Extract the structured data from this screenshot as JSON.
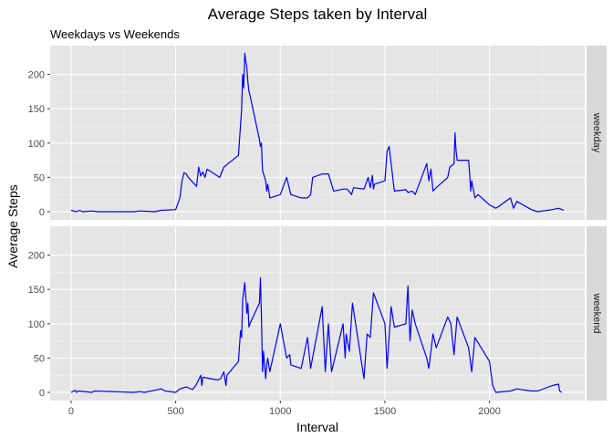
{
  "chart_data": {
    "type": "line",
    "title": "Average Steps taken by Interval",
    "subtitle": "Weekdays vs Weekends",
    "xlabel": "Interval",
    "ylabel": "Average Steps",
    "xlim": [
      -100,
      2455
    ],
    "ylim": [
      -12,
      242
    ],
    "x_ticks": [
      0,
      500,
      1000,
      1500,
      2000
    ],
    "y_ticks": [
      0,
      50,
      100,
      150,
      200
    ],
    "grid": true,
    "line_color": "#0000ff",
    "panel_bg": "#e5e5e5",
    "strip_bg": "#d9d9d9",
    "series": [
      {
        "name": "weekday",
        "x": [
          0,
          25,
          40,
          55,
          100,
          130,
          200,
          300,
          330,
          400,
          430,
          500,
          520,
          530,
          540,
          550,
          560,
          600,
          610,
          620,
          630,
          640,
          650,
          700,
          710,
          730,
          750,
          800,
          815,
          820,
          825,
          830,
          835,
          840,
          845,
          850,
          855,
          900,
          905,
          910,
          915,
          930,
          935,
          940,
          950,
          1000,
          1030,
          1050,
          1100,
          1130,
          1145,
          1155,
          1200,
          1210,
          1220,
          1230,
          1245,
          1255,
          1300,
          1320,
          1340,
          1350,
          1400,
          1420,
          1430,
          1440,
          1445,
          1450,
          1500,
          1510,
          1520,
          1530,
          1545,
          1600,
          1610,
          1630,
          1645,
          1700,
          1710,
          1720,
          1730,
          1745,
          1800,
          1810,
          1830,
          1835,
          1840,
          1845,
          1900,
          1905,
          1910,
          1915,
          1930,
          1945,
          2000,
          2030,
          2045,
          2100,
          2115,
          2130,
          2200,
          2230,
          2300,
          2330,
          2355
        ],
        "values": [
          2,
          0,
          2,
          0,
          1,
          0,
          0,
          0,
          1,
          0,
          2,
          3,
          20,
          45,
          57,
          55,
          50,
          37,
          65,
          52,
          58,
          50,
          62,
          52,
          50,
          65,
          70,
          82,
          150,
          200,
          180,
          231,
          220,
          210,
          190,
          175,
          170,
          105,
          95,
          100,
          60,
          45,
          30,
          40,
          20,
          25,
          50,
          25,
          20,
          20,
          25,
          50,
          55,
          55,
          55,
          55,
          40,
          30,
          33,
          33,
          25,
          35,
          33,
          50,
          35,
          53,
          33,
          40,
          45,
          88,
          95,
          70,
          30,
          32,
          28,
          30,
          25,
          70,
          45,
          62,
          30,
          35,
          50,
          65,
          70,
          115,
          90,
          75,
          75,
          55,
          30,
          45,
          20,
          25,
          10,
          5,
          8,
          20,
          5,
          15,
          3,
          0,
          3,
          5,
          2
        ]
      },
      {
        "name": "weekend",
        "x": [
          0,
          20,
          25,
          35,
          100,
          110,
          300,
          330,
          350,
          400,
          430,
          450,
          500,
          520,
          550,
          580,
          600,
          620,
          625,
          630,
          700,
          715,
          730,
          740,
          745,
          800,
          810,
          815,
          820,
          830,
          835,
          840,
          845,
          850,
          855,
          900,
          905,
          910,
          915,
          920,
          930,
          935,
          940,
          950,
          1000,
          1030,
          1045,
          1050,
          1100,
          1130,
          1145,
          1200,
          1215,
          1230,
          1245,
          1300,
          1310,
          1315,
          1330,
          1345,
          1400,
          1415,
          1430,
          1445,
          1500,
          1510,
          1530,
          1545,
          1600,
          1610,
          1620,
          1630,
          1645,
          1700,
          1710,
          1730,
          1745,
          1800,
          1815,
          1830,
          1845,
          1900,
          1915,
          1930,
          2000,
          2015,
          2030,
          2100,
          2130,
          2200,
          2230,
          2300,
          2330,
          2335,
          2345
        ],
        "values": [
          0,
          3,
          0,
          2,
          0,
          2,
          0,
          1,
          0,
          3,
          5,
          2,
          0,
          5,
          8,
          4,
          12,
          25,
          10,
          22,
          18,
          20,
          30,
          10,
          25,
          45,
          90,
          80,
          135,
          160,
          140,
          115,
          130,
          95,
          100,
          130,
          167,
          110,
          30,
          60,
          20,
          40,
          50,
          30,
          100,
          50,
          55,
          40,
          35,
          80,
          35,
          125,
          30,
          100,
          30,
          100,
          50,
          85,
          60,
          130,
          20,
          85,
          80,
          145,
          100,
          35,
          125,
          95,
          100,
          155,
          75,
          120,
          100,
          50,
          35,
          85,
          65,
          110,
          100,
          55,
          110,
          65,
          30,
          80,
          45,
          10,
          0,
          2,
          5,
          2,
          2,
          10,
          12,
          2,
          0
        ]
      }
    ]
  }
}
